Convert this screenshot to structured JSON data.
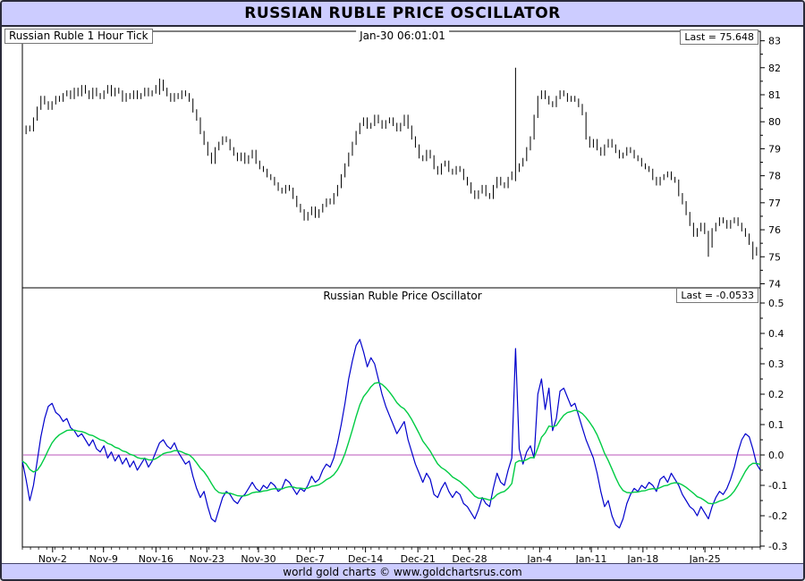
{
  "window": {
    "title": "RUSSIAN RUBLE PRICE OSCILLATOR",
    "footer": "world gold charts © www.goldchartsrus.com"
  },
  "price_panel": {
    "label": "Russian Ruble 1 Hour Tick",
    "timestamp": "Jan-30  06:01:01",
    "last_label": "Last = 75.648",
    "last_value": 75.648
  },
  "oscillator_panel": {
    "title": "Russian Ruble Price Oscillator",
    "last_label": "Last = -0.0533",
    "last_value": -0.0533
  },
  "chart_data": {
    "type": "line",
    "title": "RUSSIAN RUBLE PRICE OSCILLATOR",
    "grid": false,
    "legend": false,
    "x_labels": [
      {
        "label": "Nov-2",
        "pos": 0.041
      },
      {
        "label": "Nov-9",
        "pos": 0.11
      },
      {
        "label": "Nov-16",
        "pos": 0.181
      },
      {
        "label": "Nov-23",
        "pos": 0.25
      },
      {
        "label": "Nov-30",
        "pos": 0.32
      },
      {
        "label": "Dec-7",
        "pos": 0.39
      },
      {
        "label": "Dec-14",
        "pos": 0.465
      },
      {
        "label": "Dec-21",
        "pos": 0.536
      },
      {
        "label": "Dec-28",
        "pos": 0.606
      },
      {
        "label": "Jan-4",
        "pos": 0.701
      },
      {
        "label": "Jan-11",
        "pos": 0.771
      },
      {
        "label": "Jan-18",
        "pos": 0.841
      },
      {
        "label": "Jan-25",
        "pos": 0.925
      }
    ],
    "panels": [
      {
        "name": "price",
        "kind": "tick_bars",
        "label": "Russian Ruble 1 Hour Tick",
        "last": 75.648,
        "ylim": [
          73.85,
          83.35
        ],
        "y_ticks": [
          83,
          82,
          81,
          80,
          79,
          78,
          77,
          76,
          75,
          74
        ],
        "color": "#000000",
        "values": [
          79.6,
          79.8,
          79.7,
          80.1,
          80.5,
          80.9,
          80.7,
          80.5,
          80.7,
          80.9,
          80.8,
          81.0,
          81.1,
          80.9,
          81.2,
          81.0,
          81.3,
          81.1,
          80.9,
          81.2,
          81.0,
          80.9,
          81.1,
          81.3,
          81.0,
          81.2,
          81.1,
          80.8,
          81.0,
          80.9,
          81.1,
          80.9,
          81.0,
          81.2,
          81.0,
          81.1,
          81.3,
          81.5,
          81.2,
          81.0,
          80.8,
          81.0,
          80.9,
          81.1,
          81.0,
          80.8,
          80.4,
          80.1,
          79.6,
          79.2,
          78.8,
          78.5,
          79.0,
          79.2,
          79.4,
          79.3,
          79.0,
          78.8,
          78.6,
          78.8,
          78.5,
          78.7,
          78.9,
          78.5,
          78.3,
          78.2,
          78.0,
          77.9,
          77.7,
          77.5,
          77.4,
          77.6,
          77.5,
          77.2,
          76.9,
          76.7,
          76.4,
          76.6,
          76.8,
          76.5,
          76.7,
          76.9,
          77.1,
          77.0,
          77.3,
          77.6,
          78.0,
          78.4,
          78.8,
          79.2,
          79.6,
          79.9,
          80.1,
          79.8,
          79.9,
          80.2,
          80.0,
          79.8,
          80.0,
          80.1,
          79.9,
          79.7,
          79.9,
          80.2,
          79.8,
          79.4,
          79.1,
          78.7,
          78.6,
          78.9,
          78.7,
          78.3,
          78.1,
          78.4,
          78.5,
          78.2,
          78.1,
          78.3,
          78.2,
          77.9,
          77.7,
          77.4,
          77.2,
          77.4,
          77.6,
          77.3,
          77.2,
          77.6,
          77.9,
          77.7,
          77.6,
          77.9,
          78.1,
          78.2,
          78.4,
          78.6,
          79.0,
          79.4,
          80.2,
          80.9,
          81.1,
          80.9,
          80.7,
          80.6,
          80.9,
          81.1,
          81.0,
          80.8,
          80.9,
          80.8,
          80.6,
          80.3,
          79.4,
          79.1,
          79.3,
          79.0,
          78.8,
          79.1,
          79.3,
          79.1,
          78.9,
          78.7,
          78.8,
          79.0,
          78.9,
          78.7,
          78.6,
          78.4,
          78.3,
          78.2,
          77.9,
          77.7,
          77.9,
          78.0,
          78.1,
          77.9,
          77.8,
          77.3,
          77.0,
          76.6,
          76.2,
          75.8,
          76.0,
          76.2,
          75.9,
          75.4,
          76.0,
          76.2,
          76.4,
          76.3,
          76.1,
          76.3,
          76.4,
          76.2,
          76.0,
          75.8,
          75.5,
          75.1,
          75.3,
          75.6
        ],
        "spikes": [
          {
            "index": 37,
            "low": 81.0,
            "high": 81.6
          },
          {
            "index": 133,
            "low": 77.8,
            "high": 82.0
          },
          {
            "index": 185,
            "low": 75.0,
            "high": 75.6
          },
          {
            "index": 197,
            "low": 74.9,
            "high": 75.4
          }
        ]
      },
      {
        "name": "oscillator",
        "kind": "line",
        "label": "Russian Ruble Price Oscillator",
        "last": -0.0533,
        "ylim": [
          -0.303,
          0.55
        ],
        "y_ticks": [
          0.5,
          0.4,
          0.3,
          0.2,
          0.1,
          0.0,
          -0.1,
          -0.2,
          -0.3
        ],
        "zero_line": {
          "value": 0,
          "color": "#bb55bb"
        },
        "series": [
          {
            "name": "price_oscillator",
            "color": "#0000cc",
            "values": [
              -0.02,
              -0.08,
              -0.15,
              -0.1,
              -0.02,
              0.06,
              0.12,
              0.16,
              0.17,
              0.14,
              0.13,
              0.11,
              0.12,
              0.09,
              0.08,
              0.06,
              0.07,
              0.05,
              0.03,
              0.05,
              0.02,
              0.01,
              0.03,
              -0.01,
              0.01,
              -0.02,
              0.0,
              -0.03,
              -0.01,
              -0.04,
              -0.02,
              -0.05,
              -0.03,
              -0.01,
              -0.04,
              -0.02,
              0.01,
              0.04,
              0.05,
              0.03,
              0.02,
              0.04,
              0.01,
              -0.01,
              -0.03,
              -0.02,
              -0.07,
              -0.11,
              -0.14,
              -0.12,
              -0.17,
              -0.21,
              -0.22,
              -0.18,
              -0.14,
              -0.12,
              -0.13,
              -0.15,
              -0.16,
              -0.14,
              -0.13,
              -0.11,
              -0.09,
              -0.11,
              -0.12,
              -0.1,
              -0.11,
              -0.09,
              -0.1,
              -0.12,
              -0.11,
              -0.08,
              -0.09,
              -0.11,
              -0.13,
              -0.11,
              -0.12,
              -0.1,
              -0.07,
              -0.09,
              -0.08,
              -0.05,
              -0.03,
              -0.04,
              -0.01,
              0.04,
              0.1,
              0.17,
              0.25,
              0.31,
              0.36,
              0.38,
              0.34,
              0.29,
              0.32,
              0.3,
              0.25,
              0.2,
              0.16,
              0.13,
              0.1,
              0.07,
              0.09,
              0.11,
              0.05,
              0.01,
              -0.03,
              -0.06,
              -0.09,
              -0.06,
              -0.08,
              -0.13,
              -0.14,
              -0.11,
              -0.09,
              -0.12,
              -0.14,
              -0.12,
              -0.13,
              -0.16,
              -0.17,
              -0.19,
              -0.21,
              -0.18,
              -0.14,
              -0.16,
              -0.17,
              -0.11,
              -0.06,
              -0.09,
              -0.1,
              -0.05,
              -0.01,
              0.35,
              0.02,
              -0.03,
              0.01,
              0.03,
              -0.01,
              0.2,
              0.25,
              0.15,
              0.22,
              0.08,
              0.12,
              0.21,
              0.22,
              0.19,
              0.16,
              0.17,
              0.13,
              0.09,
              0.05,
              0.02,
              -0.01,
              -0.06,
              -0.12,
              -0.17,
              -0.15,
              -0.2,
              -0.23,
              -0.24,
              -0.21,
              -0.16,
              -0.13,
              -0.11,
              -0.12,
              -0.1,
              -0.11,
              -0.09,
              -0.1,
              -0.12,
              -0.08,
              -0.07,
              -0.09,
              -0.06,
              -0.08,
              -0.1,
              -0.13,
              -0.15,
              -0.17,
              -0.18,
              -0.2,
              -0.17,
              -0.19,
              -0.21,
              -0.17,
              -0.14,
              -0.12,
              -0.13,
              -0.11,
              -0.08,
              -0.04,
              0.01,
              0.05,
              0.07,
              0.06,
              0.02,
              -0.03,
              -0.05
            ]
          },
          {
            "name": "smoothed_signal",
            "color": "#00cc44",
            "derived": "ema",
            "period": 12
          }
        ]
      }
    ]
  }
}
